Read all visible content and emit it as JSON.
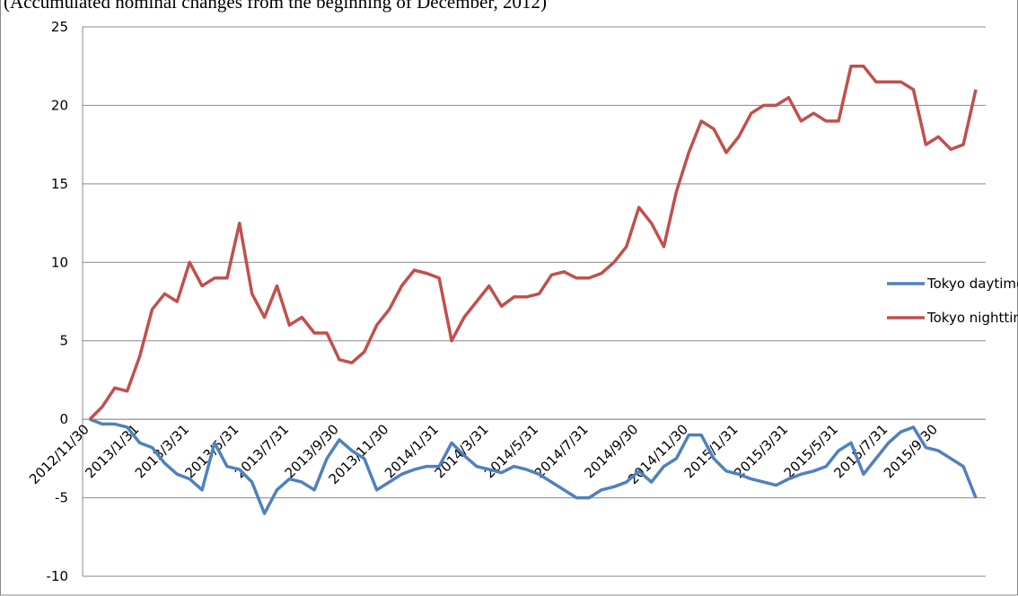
{
  "chart_data": {
    "type": "line",
    "title": "(Accumulated nominal changes from the beginning of December, 2012)",
    "categories": [
      "2012/11/30",
      null,
      null,
      null,
      "2013/1/31",
      null,
      null,
      null,
      "2013/3/31",
      null,
      null,
      null,
      "2013/5/31",
      null,
      null,
      null,
      "2013/7/31",
      null,
      null,
      null,
      "2013/9/30",
      null,
      null,
      null,
      "2013/11/30",
      null,
      null,
      null,
      "2014/1/31",
      null,
      null,
      null,
      "2014/3/31",
      null,
      null,
      null,
      "2014/5/31",
      null,
      null,
      null,
      "2014/7/31",
      null,
      null,
      null,
      "2014/9/30",
      null,
      null,
      null,
      "2014/11/30",
      null,
      null,
      null,
      "2015/1/31",
      null,
      null,
      null,
      "2015/3/31",
      null,
      null,
      null,
      "2015/5/31",
      null,
      null,
      null,
      "2015/7/31",
      null,
      null,
      null,
      "2015/9/30",
      null,
      null,
      null
    ],
    "series": [
      {
        "name": "Tokyo daytime",
        "color": "#4f81bd",
        "values": [
          0,
          -0.3,
          -0.3,
          -0.5,
          -1.5,
          -1.8,
          -2.8,
          -3.5,
          -3.8,
          -4.5,
          -1.5,
          -3,
          -3.2,
          -4,
          -6,
          -4.5,
          -3.8,
          -4,
          -4.5,
          -2.5,
          -1.3,
          -2,
          -2.5,
          -4.5,
          -4,
          -3.5,
          -3.2,
          -3,
          -3,
          -1.5,
          -2.3,
          -3,
          -3.2,
          -3.4,
          -3,
          -3.2,
          -3.5,
          -4,
          -4.5,
          -5,
          -5,
          -4.5,
          -4.3,
          -4,
          -3.3,
          -4,
          -3,
          -2.5,
          -1,
          -1,
          -2.5,
          -3.3,
          -3.5,
          -3.8,
          -4,
          -4.2,
          -3.8,
          -3.5,
          -3.3,
          -3,
          -2,
          -1.5,
          -3.5,
          -2.5,
          -1.5,
          -0.8,
          -0.5,
          -1.8,
          -2,
          -2.5,
          -3,
          -5
        ]
      },
      {
        "name": "Tokyo nighttime",
        "color": "#c0504d",
        "values": [
          0,
          0.8,
          2,
          1.8,
          4,
          7,
          8,
          7.5,
          10,
          8.5,
          9,
          9,
          12.5,
          8,
          6.5,
          8.5,
          6,
          6.5,
          5.5,
          5.5,
          3.8,
          3.6,
          4.3,
          6,
          7,
          8.5,
          9.5,
          9.3,
          9,
          5,
          6.5,
          7.5,
          8.5,
          7.2,
          7.8,
          7.8,
          8,
          9.2,
          9.4,
          9,
          9,
          9.3,
          10,
          11,
          13.5,
          12.5,
          11,
          14.5,
          17,
          19,
          18.5,
          17,
          18,
          19.5,
          20,
          20,
          20.5,
          19,
          19.5,
          19,
          19,
          22.5,
          22.5,
          21.5,
          21.5,
          21.5,
          21,
          17.5,
          18,
          17.2,
          17.5,
          21
        ]
      }
    ],
    "ylim": [
      -10,
      25
    ],
    "yticks": [
      -10,
      -5,
      0,
      5,
      10,
      15,
      20,
      25
    ],
    "grid": true,
    "legend": "right"
  }
}
